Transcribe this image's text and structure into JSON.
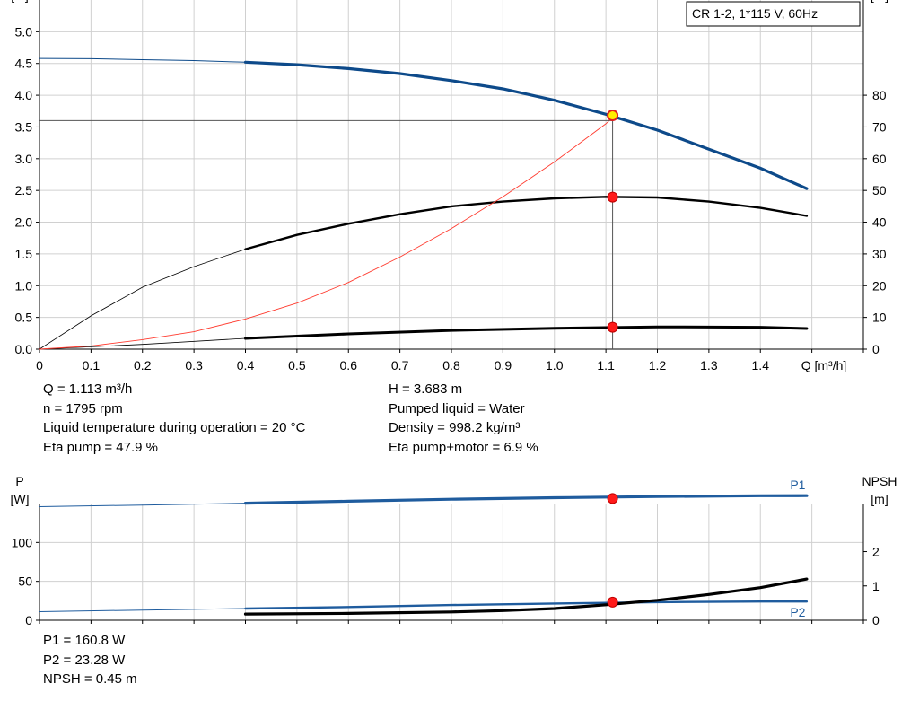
{
  "title_box": "CR 1-2, 1*115 V, 60Hz",
  "colors": {
    "head": "#0d4a8a",
    "power": "#1f5c9e",
    "efficiency": "#000000",
    "npsh": "#000000",
    "eta_total": "#ff3b2f",
    "marker": "#ff1a1a",
    "marker_duty": "#ffee00"
  },
  "info_top_left": [
    "Q = 1.113 m³/h",
    "n = 1795 rpm",
    "Liquid temperature during operation = 20 °C",
    "Eta pump = 47.9 %"
  ],
  "info_top_right": [
    "H = 3.683 m",
    "Pumped liquid = Water",
    "Density = 998.2 kg/m³",
    "Eta pump+motor = 6.9 %"
  ],
  "info_bottom": [
    "P1 = 160.8 W",
    "P2 = 23.28 W",
    "NPSH = 0.45 m"
  ],
  "chart_data": [
    {
      "type": "line",
      "title": "",
      "xlabel": "Q [m³/h]",
      "ylabel": "H\n[m]",
      "ylabel2": "eta\n[%]",
      "xlim": [
        0,
        1.6
      ],
      "ylim": [
        0,
        5.5
      ],
      "y2lim": [
        0,
        110
      ],
      "x_ticks": [
        "0",
        "0.1",
        "0.2",
        "0.3",
        "0.4",
        "0.5",
        "0.6",
        "0.7",
        "0.8",
        "0.9",
        "1.0",
        "1.1",
        "1.2",
        "1.3",
        "1.4"
      ],
      "y_ticks": [
        "0.0",
        "0.5",
        "1.0",
        "1.5",
        "2.0",
        "2.5",
        "3.0",
        "3.5",
        "4.0",
        "4.5",
        "5.0"
      ],
      "y2_ticks": [
        "0",
        "10",
        "20",
        "30",
        "40",
        "50",
        "60",
        "70",
        "80"
      ],
      "grid": true,
      "duty_point": {
        "x": 1.113,
        "head": 3.683,
        "eta_pump": 47.9,
        "eta_total": 6.9
      },
      "series": [
        {
          "key": "head",
          "axis": "left",
          "x": [
            0,
            0.1,
            0.2,
            0.3,
            0.4,
            0.5,
            0.6,
            0.7,
            0.8,
            0.9,
            1.0,
            1.1,
            1.2,
            1.3,
            1.4,
            1.49
          ],
          "y": [
            4.58,
            4.575,
            4.56,
            4.545,
            4.52,
            4.48,
            4.42,
            4.34,
            4.23,
            4.1,
            3.92,
            3.7,
            3.45,
            3.15,
            2.85,
            2.53
          ]
        },
        {
          "key": "eta_pump",
          "axis": "right",
          "x": [
            0,
            0.1,
            0.2,
            0.3,
            0.4,
            0.5,
            0.6,
            0.7,
            0.8,
            0.9,
            1.0,
            1.1,
            1.2,
            1.3,
            1.4,
            1.49
          ],
          "y": [
            0,
            10.5,
            19.5,
            26,
            31.5,
            36,
            39.5,
            42.5,
            45,
            46.5,
            47.5,
            48,
            47.8,
            46.5,
            44.5,
            42
          ]
        },
        {
          "key": "eta_total",
          "axis": "right",
          "x": [
            0,
            0.1,
            0.2,
            0.3,
            0.4,
            0.5,
            0.6,
            0.7,
            0.8,
            0.9,
            1.0,
            1.1,
            1.113
          ],
          "y": [
            0,
            1,
            3,
            5.5,
            9.5,
            14.5,
            21,
            29,
            38,
            48,
            59,
            71,
            73
          ]
        },
        {
          "key": "eta_total_pm",
          "axis": "right",
          "x": [
            0,
            0.2,
            0.4,
            0.6,
            0.8,
            1.0,
            1.2,
            1.4,
            1.49
          ],
          "y": [
            0,
            1.5,
            3.4,
            4.8,
            5.9,
            6.6,
            7,
            6.9,
            6.5
          ]
        }
      ]
    },
    {
      "type": "line",
      "title": "",
      "xlabel": "",
      "ylabel": "P\n[W]",
      "ylabel2": "NPSH\n[m]",
      "xlim": [
        0,
        1.6
      ],
      "ylim": [
        0,
        150
      ],
      "y2lim": [
        0,
        3.4
      ],
      "y_ticks": [
        "0",
        "50",
        "100"
      ],
      "y2_ticks": [
        "0",
        "1",
        "2"
      ],
      "grid": true,
      "duty_point": {
        "x": 1.113,
        "p1": 160.8,
        "p2": 23.28,
        "npsh": 0.45
      },
      "series": [
        {
          "key": "p1",
          "name": "P1",
          "axis": "left",
          "x": [
            0,
            0.2,
            0.4,
            0.6,
            0.8,
            1.0,
            1.2,
            1.4,
            1.49
          ],
          "y": [
            146,
            148,
            150.5,
            153,
            155.5,
            157.5,
            159,
            160,
            160.2
          ]
        },
        {
          "key": "p2",
          "name": "P2",
          "axis": "left",
          "x": [
            0,
            0.2,
            0.4,
            0.6,
            0.8,
            1.0,
            1.2,
            1.4,
            1.49
          ],
          "y": [
            11,
            13,
            15,
            17,
            19.5,
            21.5,
            23.2,
            24,
            24
          ]
        },
        {
          "key": "npsh",
          "axis": "right",
          "x": [
            0.4,
            0.6,
            0.8,
            0.9,
            1.0,
            1.1,
            1.2,
            1.3,
            1.4,
            1.49
          ],
          "y": [
            0.18,
            0.2,
            0.24,
            0.28,
            0.34,
            0.45,
            0.58,
            0.75,
            0.95,
            1.2
          ]
        }
      ]
    }
  ]
}
